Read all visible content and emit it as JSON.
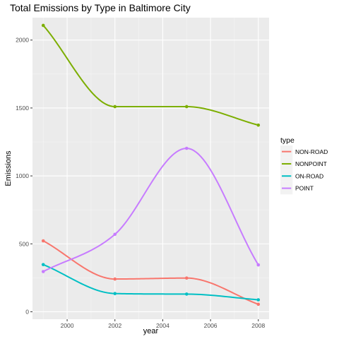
{
  "chart_data": {
    "type": "line",
    "title": "Total Emissions by Type in Baltimore City",
    "xlabel": "year",
    "ylabel": "Emissions",
    "x": [
      1999,
      2002,
      2005,
      2008
    ],
    "xlim": [
      1998.55,
      2008.45
    ],
    "ylim": [
      -55,
      2165
    ],
    "x_ticks": [
      2000,
      2002,
      2004,
      2006,
      2008
    ],
    "y_ticks": [
      0,
      500,
      1000,
      1500,
      2000
    ],
    "grid": true,
    "smoothed": true,
    "legend": {
      "title": "type",
      "position": "right"
    },
    "series": [
      {
        "name": "NON-ROAD",
        "color": "#F8766D",
        "values": [
          522,
          241,
          248,
          55
        ]
      },
      {
        "name": "NONPOINT",
        "color": "#7CAE00",
        "values": [
          2108,
          1510,
          1510,
          1374
        ]
      },
      {
        "name": "ON-ROAD",
        "color": "#00BFC4",
        "values": [
          347,
          134,
          130,
          88
        ]
      },
      {
        "name": "POINT",
        "color": "#C77CFF",
        "values": [
          296,
          570,
          1203,
          345
        ]
      }
    ]
  }
}
